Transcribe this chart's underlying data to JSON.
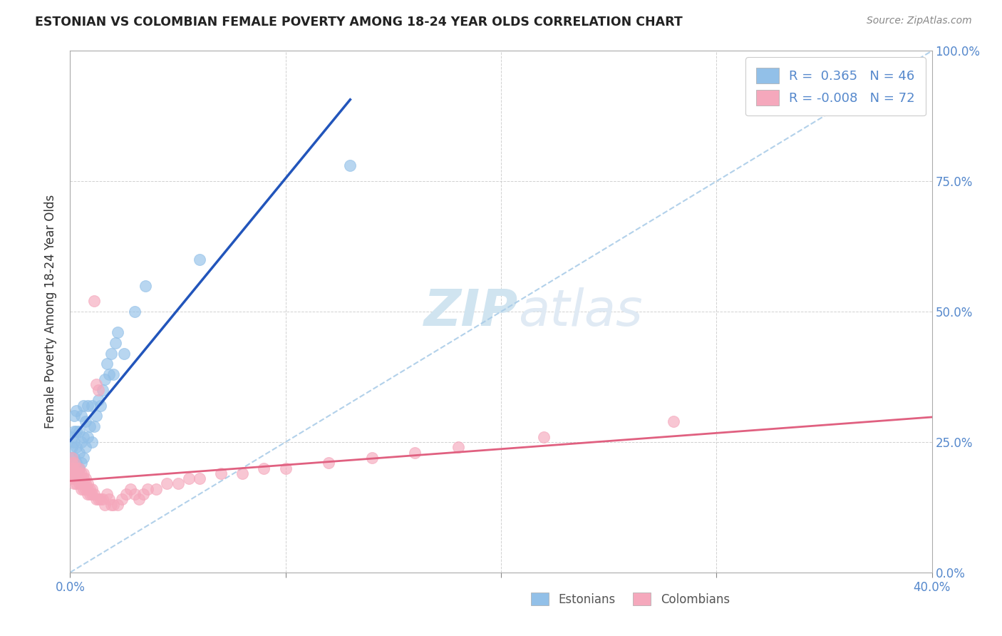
{
  "title": "ESTONIAN VS COLOMBIAN FEMALE POVERTY AMONG 18-24 YEAR OLDS CORRELATION CHART",
  "source": "Source: ZipAtlas.com",
  "ylabel": "Female Poverty Among 18-24 Year Olds",
  "xlim": [
    0.0,
    0.4
  ],
  "ylim": [
    0.0,
    1.0
  ],
  "xticks": [
    0.0,
    0.1,
    0.2,
    0.3,
    0.4
  ],
  "xtick_labels": [
    "0.0%",
    "",
    "",
    "",
    "40.0%"
  ],
  "yticks": [
    0.0,
    0.25,
    0.5,
    0.75,
    1.0
  ],
  "ytick_labels_right": [
    "0.0%",
    "25.0%",
    "50.0%",
    "75.0%",
    "100.0%"
  ],
  "estonian_R": 0.365,
  "estonian_N": 46,
  "colombian_R": -0.008,
  "colombian_N": 72,
  "estonian_color": "#92C0E8",
  "colombian_color": "#F5A8BC",
  "estonian_line_color": "#2255BB",
  "colombian_line_color": "#E06080",
  "ref_line_color": "#AACCE8",
  "background_color": "#FFFFFF",
  "watermark_zip": "ZIP",
  "watermark_atlas": "atlas",
  "watermark_color": "#D0E4F0",
  "estonian_x": [
    0.001,
    0.001,
    0.001,
    0.002,
    0.002,
    0.002,
    0.002,
    0.002,
    0.003,
    0.003,
    0.003,
    0.003,
    0.003,
    0.004,
    0.004,
    0.004,
    0.005,
    0.005,
    0.005,
    0.006,
    0.006,
    0.006,
    0.007,
    0.007,
    0.008,
    0.008,
    0.009,
    0.01,
    0.01,
    0.011,
    0.012,
    0.013,
    0.014,
    0.015,
    0.016,
    0.017,
    0.018,
    0.019,
    0.02,
    0.021,
    0.022,
    0.025,
    0.03,
    0.035,
    0.06,
    0.13
  ],
  "estonian_y": [
    0.22,
    0.24,
    0.26,
    0.2,
    0.22,
    0.25,
    0.27,
    0.3,
    0.19,
    0.21,
    0.24,
    0.27,
    0.31,
    0.2,
    0.23,
    0.27,
    0.21,
    0.25,
    0.3,
    0.22,
    0.26,
    0.32,
    0.24,
    0.29,
    0.26,
    0.32,
    0.28,
    0.25,
    0.32,
    0.28,
    0.3,
    0.33,
    0.32,
    0.35,
    0.37,
    0.4,
    0.38,
    0.42,
    0.38,
    0.44,
    0.46,
    0.42,
    0.5,
    0.55,
    0.6,
    0.78
  ],
  "colombian_x": [
    0.001,
    0.001,
    0.001,
    0.001,
    0.001,
    0.002,
    0.002,
    0.002,
    0.002,
    0.002,
    0.003,
    0.003,
    0.003,
    0.003,
    0.004,
    0.004,
    0.004,
    0.004,
    0.005,
    0.005,
    0.005,
    0.005,
    0.006,
    0.006,
    0.006,
    0.006,
    0.007,
    0.007,
    0.007,
    0.008,
    0.008,
    0.008,
    0.009,
    0.009,
    0.01,
    0.01,
    0.011,
    0.011,
    0.012,
    0.012,
    0.013,
    0.013,
    0.014,
    0.015,
    0.016,
    0.017,
    0.018,
    0.019,
    0.02,
    0.022,
    0.024,
    0.026,
    0.028,
    0.03,
    0.032,
    0.034,
    0.036,
    0.04,
    0.045,
    0.05,
    0.055,
    0.06,
    0.07,
    0.08,
    0.09,
    0.1,
    0.12,
    0.14,
    0.16,
    0.18,
    0.22,
    0.28
  ],
  "colombian_y": [
    0.18,
    0.19,
    0.2,
    0.21,
    0.22,
    0.17,
    0.18,
    0.19,
    0.2,
    0.21,
    0.17,
    0.18,
    0.19,
    0.2,
    0.17,
    0.18,
    0.19,
    0.2,
    0.16,
    0.17,
    0.18,
    0.19,
    0.16,
    0.17,
    0.18,
    0.19,
    0.16,
    0.17,
    0.18,
    0.15,
    0.16,
    0.17,
    0.15,
    0.16,
    0.15,
    0.16,
    0.15,
    0.52,
    0.14,
    0.36,
    0.14,
    0.35,
    0.14,
    0.14,
    0.13,
    0.15,
    0.14,
    0.13,
    0.13,
    0.13,
    0.14,
    0.15,
    0.16,
    0.15,
    0.14,
    0.15,
    0.16,
    0.16,
    0.17,
    0.17,
    0.18,
    0.18,
    0.19,
    0.19,
    0.2,
    0.2,
    0.21,
    0.22,
    0.23,
    0.24,
    0.26,
    0.29
  ]
}
